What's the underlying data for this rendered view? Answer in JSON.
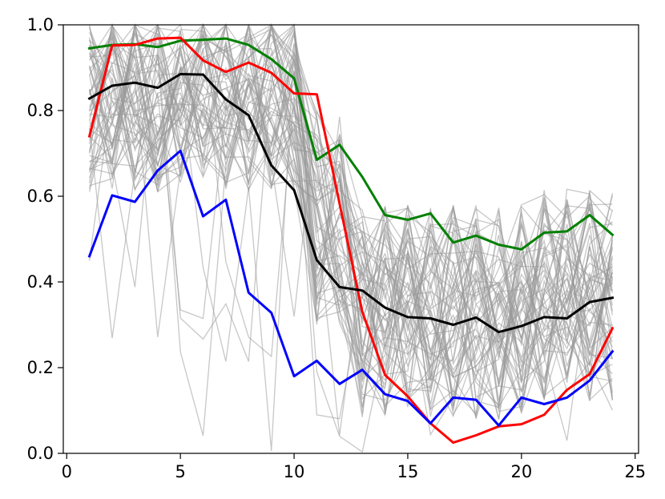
{
  "chart_data": {
    "type": "line",
    "title": "",
    "xlabel": "",
    "ylabel": "",
    "xlim": [
      -0.15,
      25.15
    ],
    "ylim": [
      0.0,
      1.0
    ],
    "x": [
      1,
      2,
      3,
      4,
      5,
      6,
      7,
      8,
      9,
      10,
      11,
      12,
      13,
      14,
      15,
      16,
      17,
      18,
      19,
      20,
      21,
      22,
      23,
      24
    ],
    "xticks": [
      0,
      5,
      10,
      15,
      20,
      25
    ],
    "xtick_labels": [
      "0",
      "5",
      "10",
      "15",
      "20",
      "25"
    ],
    "yticks": [
      0.0,
      0.2,
      0.4,
      0.6,
      0.8,
      1.0
    ],
    "ytick_labels": [
      "0.0",
      "0.2",
      "0.4",
      "0.6",
      "0.8",
      "1.0"
    ],
    "grid": false,
    "legend": "none",
    "background_series": {
      "color": "#999999",
      "count": 60,
      "description_values": "many faint gray individual traces, high (0.6–1.0) for x=1–10, dropping to 0.1–0.6 for x=12–24"
    },
    "series": [
      {
        "color": "#008000",
        "values": [
          0.945,
          0.953,
          0.955,
          0.948,
          0.963,
          0.965,
          0.968,
          0.953,
          0.92,
          0.875,
          0.685,
          0.72,
          0.645,
          0.556,
          0.545,
          0.56,
          0.492,
          0.508,
          0.487,
          0.476,
          0.515,
          0.518,
          0.556,
          0.51
        ]
      },
      {
        "color": "#ff0000",
        "values": [
          0.74,
          0.952,
          0.953,
          0.968,
          0.97,
          0.917,
          0.89,
          0.912,
          0.888,
          0.84,
          0.838,
          0.583,
          0.33,
          0.183,
          0.133,
          0.07,
          0.025,
          0.042,
          0.063,
          0.068,
          0.09,
          0.148,
          0.185,
          0.292
        ]
      },
      {
        "color": "#000000",
        "values": [
          0.828,
          0.858,
          0.865,
          0.853,
          0.885,
          0.884,
          0.826,
          0.789,
          0.672,
          0.614,
          0.451,
          0.388,
          0.38,
          0.34,
          0.318,
          0.315,
          0.3,
          0.317,
          0.283,
          0.297,
          0.318,
          0.315,
          0.353,
          0.363
        ]
      },
      {
        "color": "#0000ff",
        "values": [
          0.46,
          0.602,
          0.587,
          0.66,
          0.706,
          0.553,
          0.592,
          0.375,
          0.328,
          0.18,
          0.216,
          0.162,
          0.195,
          0.138,
          0.122,
          0.07,
          0.13,
          0.125,
          0.065,
          0.13,
          0.115,
          0.13,
          0.17,
          0.238
        ]
      }
    ]
  }
}
